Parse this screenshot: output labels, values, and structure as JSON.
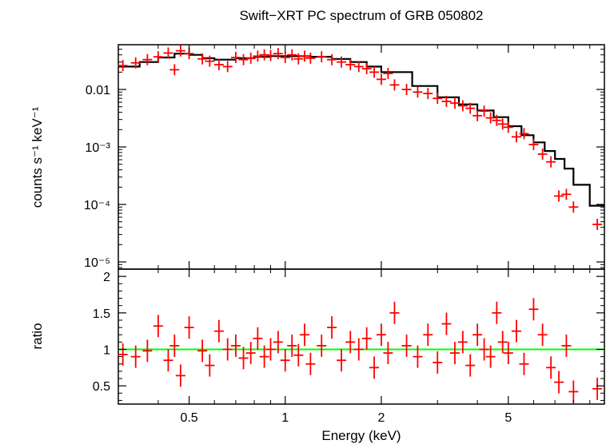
{
  "chart_data": [
    {
      "type": "scatter",
      "title": "Swift−XRT PC spectrum of GRB 050802",
      "xlabel": "Energy (keV)",
      "ylabel": "counts s⁻¹ keV⁻¹",
      "xscale": "log",
      "yscale": "log",
      "xlim": [
        0.3,
        10
      ],
      "ylim": [
        7.5e-06,
        0.06
      ],
      "grid": false,
      "y_ticks": [
        {
          "value": 0.01,
          "label": "0.01"
        },
        {
          "value": 0.001,
          "label": "10⁻³"
        },
        {
          "value": 0.0001,
          "label": "10⁻⁴"
        },
        {
          "value": 1e-05,
          "label": "10⁻⁵"
        }
      ],
      "model": {
        "name": "model",
        "color": "#000000",
        "points": [
          [
            0.3,
            0.025
          ],
          [
            0.35,
            0.03
          ],
          [
            0.4,
            0.036
          ],
          [
            0.45,
            0.042
          ],
          [
            0.5,
            0.04
          ],
          [
            0.55,
            0.035
          ],
          [
            0.6,
            0.033
          ],
          [
            0.7,
            0.035
          ],
          [
            0.8,
            0.037
          ],
          [
            0.9,
            0.038
          ],
          [
            1.0,
            0.038
          ],
          [
            1.2,
            0.037
          ],
          [
            1.4,
            0.034
          ],
          [
            1.6,
            0.03
          ],
          [
            1.8,
            0.025
          ],
          [
            2.0,
            0.02
          ],
          [
            2.5,
            0.0115
          ],
          [
            3.0,
            0.0073
          ],
          [
            3.5,
            0.0055
          ],
          [
            4.0,
            0.0043
          ],
          [
            4.5,
            0.0033
          ],
          [
            5.0,
            0.0023
          ],
          [
            5.5,
            0.0016
          ],
          [
            6.0,
            0.0012
          ],
          [
            6.5,
            0.00085
          ],
          [
            7.0,
            0.00062
          ],
          [
            7.5,
            0.00042
          ],
          [
            8.0,
            0.00022
          ],
          [
            9.0,
            9.5e-05
          ],
          [
            10.0,
            9.5e-05
          ]
        ]
      },
      "series": [
        {
          "name": "data",
          "color": "#ff0000",
          "points": [
            [
              0.31,
              0.026
            ],
            [
              0.34,
              0.029
            ],
            [
              0.37,
              0.033
            ],
            [
              0.4,
              0.037
            ],
            [
              0.43,
              0.043
            ],
            [
              0.45,
              0.022
            ],
            [
              0.47,
              0.047
            ],
            [
              0.5,
              0.042
            ],
            [
              0.55,
              0.034
            ],
            [
              0.58,
              0.031
            ],
            [
              0.62,
              0.027
            ],
            [
              0.66,
              0.025
            ],
            [
              0.7,
              0.036
            ],
            [
              0.74,
              0.033
            ],
            [
              0.78,
              0.035
            ],
            [
              0.82,
              0.038
            ],
            [
              0.86,
              0.04
            ],
            [
              0.9,
              0.039
            ],
            [
              0.95,
              0.042
            ],
            [
              1.0,
              0.036
            ],
            [
              1.05,
              0.04
            ],
            [
              1.1,
              0.034
            ],
            [
              1.15,
              0.038
            ],
            [
              1.2,
              0.035
            ],
            [
              1.3,
              0.037
            ],
            [
              1.4,
              0.033
            ],
            [
              1.5,
              0.03
            ],
            [
              1.6,
              0.027
            ],
            [
              1.7,
              0.025
            ],
            [
              1.8,
              0.023
            ],
            [
              1.9,
              0.02
            ],
            [
              2.0,
              0.015
            ],
            [
              2.1,
              0.019
            ],
            [
              2.2,
              0.012
            ],
            [
              2.4,
              0.01
            ],
            [
              2.6,
              0.009
            ],
            [
              2.8,
              0.0085
            ],
            [
              3.0,
              0.007
            ],
            [
              3.2,
              0.0062
            ],
            [
              3.4,
              0.0058
            ],
            [
              3.6,
              0.0052
            ],
            [
              3.8,
              0.0047
            ],
            [
              4.0,
              0.0035
            ],
            [
              4.2,
              0.0042
            ],
            [
              4.4,
              0.0032
            ],
            [
              4.6,
              0.0029
            ],
            [
              4.8,
              0.0025
            ],
            [
              5.0,
              0.0022
            ],
            [
              5.3,
              0.0015
            ],
            [
              5.6,
              0.0017
            ],
            [
              6.0,
              0.0011
            ],
            [
              6.4,
              0.00075
            ],
            [
              6.8,
              0.00055
            ],
            [
              7.2,
              0.00014
            ],
            [
              7.6,
              0.00015
            ],
            [
              8.0,
              9e-05
            ],
            [
              9.5,
              4.5e-05
            ]
          ]
        }
      ]
    },
    {
      "type": "scatter",
      "xlabel": "Energy (keV)",
      "ylabel": "ratio",
      "xscale": "log",
      "xlim": [
        0.3,
        10
      ],
      "ylim": [
        0.25,
        2.1
      ],
      "grid": false,
      "x_ticks": [
        {
          "value": 0.5,
          "label": "0.5"
        },
        {
          "value": 1,
          "label": "1"
        },
        {
          "value": 2,
          "label": "2"
        },
        {
          "value": 5,
          "label": "5"
        }
      ],
      "y_ticks": [
        {
          "value": 0.5,
          "label": "0.5"
        },
        {
          "value": 1,
          "label": "1"
        },
        {
          "value": 1.5,
          "label": "1.5"
        },
        {
          "value": 2,
          "label": "2"
        }
      ],
      "reference_line": {
        "value": 1,
        "color": "#00ff00"
      },
      "series": [
        {
          "name": "data",
          "color": "#ff0000",
          "points": [
            [
              0.31,
              0.93
            ],
            [
              0.34,
              0.9
            ],
            [
              0.37,
              0.98
            ],
            [
              0.4,
              1.32
            ],
            [
              0.43,
              0.85
            ],
            [
              0.45,
              1.05
            ],
            [
              0.47,
              0.64
            ],
            [
              0.5,
              1.3
            ],
            [
              0.55,
              0.98
            ],
            [
              0.58,
              0.78
            ],
            [
              0.62,
              1.25
            ],
            [
              0.66,
              1.0
            ],
            [
              0.7,
              1.05
            ],
            [
              0.74,
              0.88
            ],
            [
              0.78,
              0.95
            ],
            [
              0.82,
              1.15
            ],
            [
              0.86,
              0.9
            ],
            [
              0.9,
              1.0
            ],
            [
              0.95,
              1.1
            ],
            [
              1.0,
              0.85
            ],
            [
              1.05,
              1.05
            ],
            [
              1.1,
              0.92
            ],
            [
              1.15,
              1.2
            ],
            [
              1.2,
              0.8
            ],
            [
              1.3,
              1.05
            ],
            [
              1.4,
              1.3
            ],
            [
              1.5,
              0.85
            ],
            [
              1.6,
              1.1
            ],
            [
              1.7,
              1.0
            ],
            [
              1.8,
              1.15
            ],
            [
              1.9,
              0.75
            ],
            [
              2.0,
              1.2
            ],
            [
              2.1,
              0.95
            ],
            [
              2.2,
              1.5
            ],
            [
              2.4,
              1.05
            ],
            [
              2.6,
              0.9
            ],
            [
              2.8,
              1.2
            ],
            [
              3.0,
              0.82
            ],
            [
              3.2,
              1.35
            ],
            [
              3.4,
              0.95
            ],
            [
              3.6,
              1.1
            ],
            [
              3.8,
              0.78
            ],
            [
              4.0,
              1.2
            ],
            [
              4.2,
              1.0
            ],
            [
              4.4,
              0.9
            ],
            [
              4.6,
              1.5
            ],
            [
              4.8,
              1.1
            ],
            [
              5.0,
              0.95
            ],
            [
              5.3,
              1.25
            ],
            [
              5.6,
              0.8
            ],
            [
              6.0,
              1.55
            ],
            [
              6.4,
              1.2
            ],
            [
              6.8,
              0.75
            ],
            [
              7.2,
              0.55
            ],
            [
              7.6,
              1.05
            ],
            [
              8.0,
              0.42
            ],
            [
              9.5,
              0.46
            ]
          ]
        }
      ]
    }
  ]
}
